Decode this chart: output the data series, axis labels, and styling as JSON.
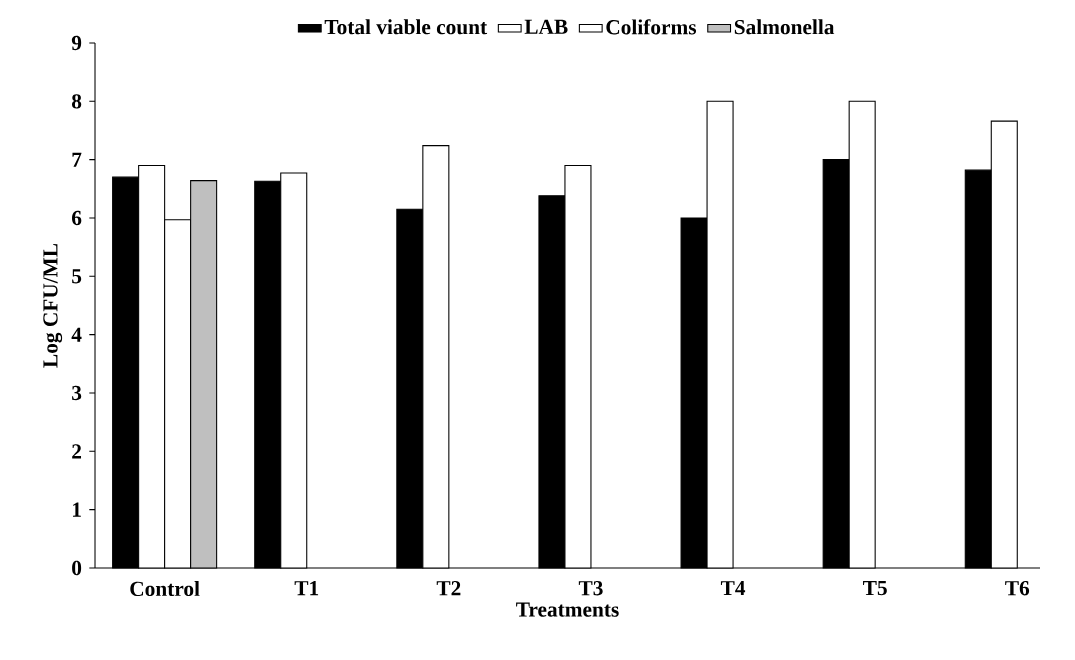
{
  "chart_data": {
    "type": "bar",
    "xlabel": "Treatments",
    "ylabel": "Log CFU/ML",
    "categories": [
      "Control",
      "T1",
      "T2",
      "T3",
      "T4",
      "T5",
      "T6"
    ],
    "series": [
      {
        "name": "Total viable count",
        "color": "#000000",
        "values": [
          6.7,
          6.63,
          6.15,
          6.38,
          6.0,
          7.0,
          6.82
        ]
      },
      {
        "name": "LAB",
        "color": "#ffffff",
        "values": [
          6.9,
          6.77,
          7.24,
          6.9,
          8.0,
          8.0,
          7.66
        ]
      },
      {
        "name": "Coliforms",
        "color": "#ffffff",
        "values": [
          5.97,
          null,
          null,
          null,
          null,
          null,
          null
        ]
      },
      {
        "name": "Salmonella",
        "color": "#bfbfbf",
        "values": [
          6.64,
          null,
          null,
          null,
          null,
          null,
          null
        ]
      }
    ],
    "ylim": [
      0,
      9
    ],
    "yticks": [
      0,
      1,
      2,
      3,
      4,
      5,
      6,
      7,
      8,
      9
    ],
    "grid": false,
    "legend": "top"
  }
}
